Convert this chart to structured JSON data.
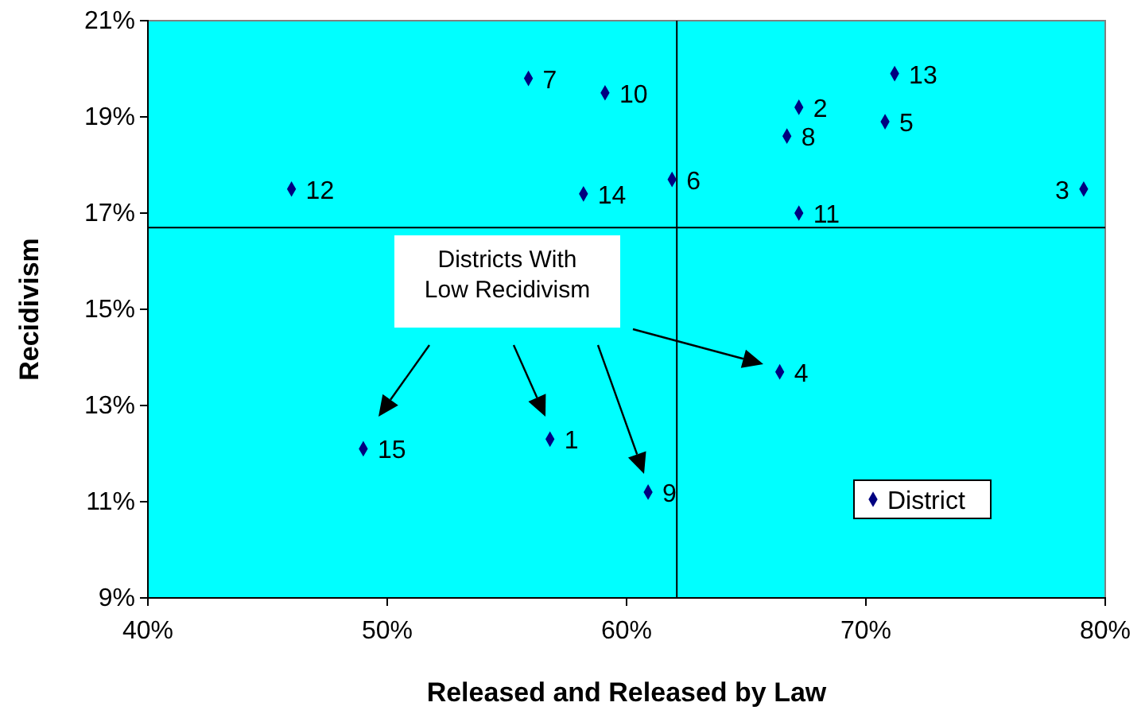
{
  "chart_data": {
    "type": "scatter",
    "xlabel": "Released and Released by Law",
    "ylabel": "Recidivism",
    "x": [
      56.8,
      67.2,
      79.1,
      66.4,
      70.8,
      61.9,
      55.9,
      66.7,
      60.9,
      59.1,
      67.2,
      46.0,
      71.2,
      58.2,
      49.0
    ],
    "series": [
      {
        "name": "District",
        "color": "#000080",
        "values": [
          12.3,
          19.2,
          17.5,
          13.7,
          18.9,
          17.7,
          19.8,
          18.6,
          11.2,
          19.5,
          17.0,
          17.5,
          19.9,
          17.4,
          12.1
        ]
      }
    ],
    "xlim": [
      40,
      80
    ],
    "ylim": [
      9,
      21
    ],
    "xticks": [
      {
        "value": 40,
        "label": "40%"
      },
      {
        "value": 50,
        "label": "50%"
      },
      {
        "value": 60,
        "label": "60%"
      },
      {
        "value": 70,
        "label": "70%"
      },
      {
        "value": 80,
        "label": "80%"
      }
    ],
    "yticks": [
      {
        "value": 9,
        "label": "9%"
      },
      {
        "value": 11,
        "label": "11%"
      },
      {
        "value": 13,
        "label": "13%"
      },
      {
        "value": 15,
        "label": "15%"
      },
      {
        "value": 17,
        "label": "17%"
      },
      {
        "value": 19,
        "label": "19%"
      },
      {
        "value": 21,
        "label": "21%"
      }
    ],
    "ref_lines": [
      {
        "axis": "x",
        "value": 62.1,
        "color": "#000000"
      },
      {
        "axis": "y",
        "value": 16.7,
        "color": "#000000"
      }
    ],
    "annotations": [
      "Districts With\nLow Recidivism",
      {
        "text": "1",
        "x": 56.8,
        "y": 12.3
      },
      {
        "text": "2",
        "x": 67.2,
        "y": 19.2
      },
      {
        "text": "3",
        "x": 79.1,
        "y": 17.5
      },
      {
        "text": "4",
        "x": 66.4,
        "y": 13.7
      },
      {
        "text": "5",
        "x": 70.8,
        "y": 18.9
      },
      {
        "text": "6",
        "x": 61.9,
        "y": 17.7
      },
      {
        "text": "7",
        "x": 55.9,
        "y": 19.8
      },
      {
        "text": "8",
        "x": 66.7,
        "y": 18.6
      },
      {
        "text": "9",
        "x": 60.9,
        "y": 11.2
      },
      {
        "text": "10",
        "x": 59.1,
        "y": 19.5
      },
      {
        "text": "11",
        "x": 67.2,
        "y": 17.0
      },
      {
        "text": "12",
        "x": 46.0,
        "y": 17.5
      },
      {
        "text": "13",
        "x": 71.2,
        "y": 19.9
      },
      {
        "text": "14",
        "x": 58.2,
        "y": 17.4
      },
      {
        "text": "15",
        "x": 49.0,
        "y": 12.1
      }
    ],
    "marker": "diamond",
    "legend": "bottom right",
    "grid": false
  }
}
